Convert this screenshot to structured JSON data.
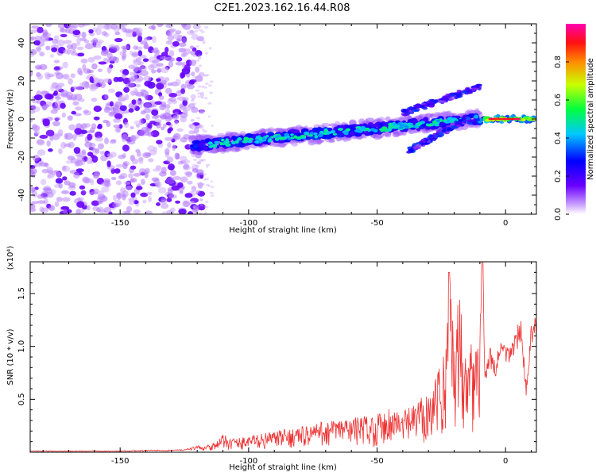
{
  "title": "C2E1.2023.162.16.44.R08",
  "chart_data": [
    {
      "type": "heatmap",
      "xlabel": "Height of straight line (km)",
      "ylabel": "Frequency (Hz)",
      "xlim": [
        -185,
        12
      ],
      "ylim": [
        -50,
        50
      ],
      "xticks": [
        "-150",
        "-100",
        "-50",
        "0"
      ],
      "yticks": [
        "-40",
        "-20",
        "0",
        "20",
        "40"
      ],
      "colorbar": {
        "label": "Normalized spectral amplitude",
        "range": [
          0,
          1
        ],
        "ticks": [
          "0.0",
          "0.2",
          "0.4",
          "0.6",
          "0.8"
        ],
        "colormap": "rainbow (violet → blue → cyan → green → yellow → red → magenta)"
      },
      "features": [
        {
          "name": "noise region",
          "x_range": [
            -185,
            -118
          ],
          "freq_range": [
            -50,
            50
          ],
          "amplitude": "low (≈0.1–0.2)"
        },
        {
          "name": "main signal band",
          "x_start": -122,
          "x_end": 12,
          "freq_start": -14,
          "freq_end": 3,
          "amplitude": "0.2–0.6"
        },
        {
          "name": "upper branch",
          "x_range": [
            -40,
            -10
          ],
          "freq_range": [
            3,
            18
          ]
        },
        {
          "name": "lower branch",
          "x_range": [
            -38,
            -14
          ],
          "freq_range": [
            -17,
            2
          ]
        },
        {
          "name": "strong tone near 0 Hz",
          "x_range": [
            -10,
            12
          ],
          "freq": 0,
          "amplitude": "≈0.9–1.0"
        }
      ]
    },
    {
      "type": "line",
      "xlabel": "Height of straight line (km)",
      "ylabel": "SNR (10 * v/v)",
      "y_scale_label": "(x10⁴)",
      "xlim": [
        -185,
        12
      ],
      "ylim": [
        0,
        1.8
      ],
      "xticks": [
        "-150",
        "-100",
        "-50",
        "0"
      ],
      "yticks": [
        "0.5",
        "1.0",
        "1.5"
      ],
      "color": "#ee3333",
      "series": [
        {
          "x": [
            -185,
            -150,
            -125,
            -118,
            -112,
            -110,
            -105,
            -100,
            -90,
            -80,
            -70,
            -60,
            -50,
            -45,
            -40,
            -35,
            -30,
            -25,
            -23,
            -22,
            -20,
            -18,
            -15,
            -12,
            -10,
            -9,
            -8,
            -6,
            -4,
            -2,
            0,
            2,
            4,
            6,
            8,
            10,
            12
          ],
          "y": [
            0.01,
            0.01,
            0.02,
            0.05,
            0.1,
            0.15,
            0.12,
            0.14,
            0.18,
            0.22,
            0.27,
            0.3,
            0.33,
            0.4,
            0.35,
            0.42,
            0.55,
            0.75,
            1.05,
            1.7,
            1.2,
            1.35,
            1.1,
            0.9,
            1.1,
            1.85,
            0.75,
            0.95,
            0.8,
            1.05,
            0.95,
            1.0,
            1.1,
            1.25,
            0.6,
            1.15,
            1.25
          ]
        }
      ]
    }
  ]
}
